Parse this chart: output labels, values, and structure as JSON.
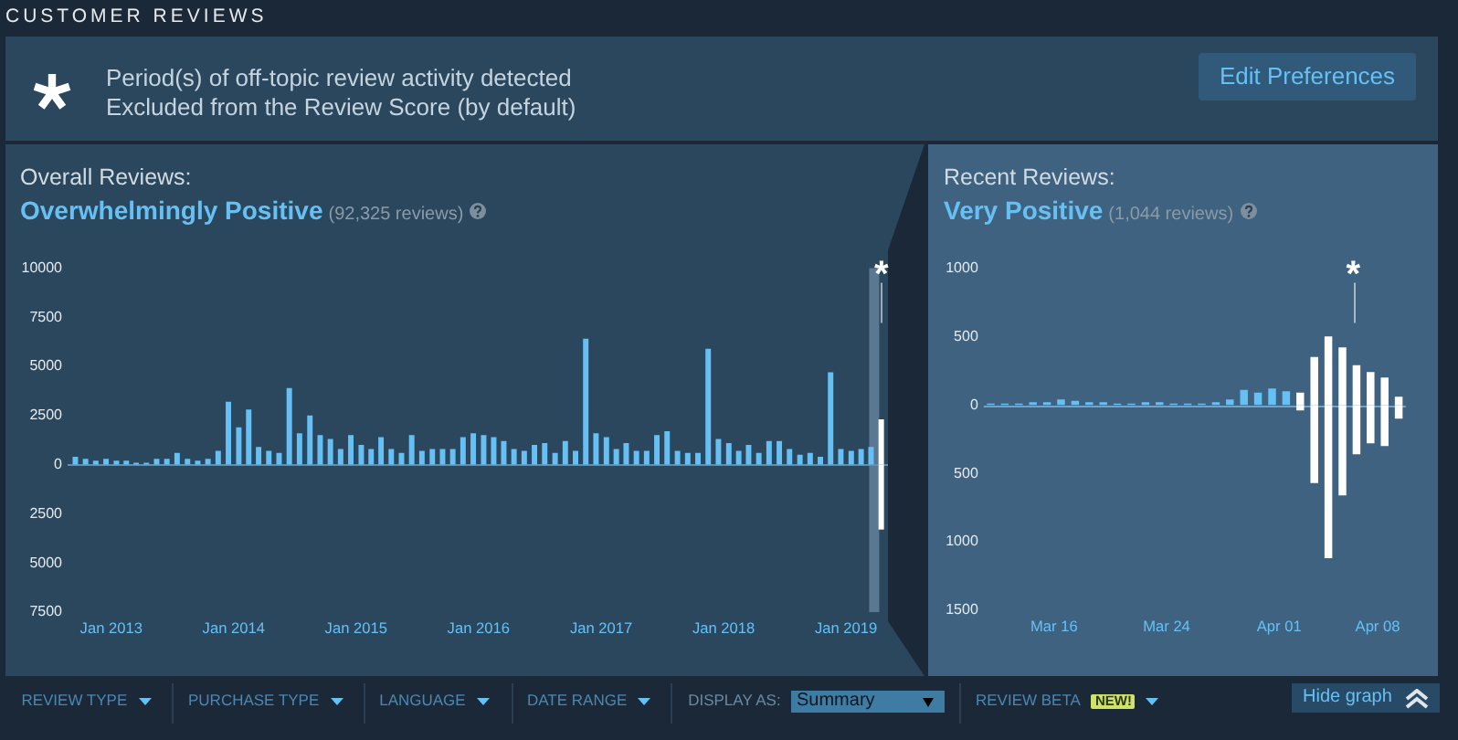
{
  "chart_data": [
    {
      "type": "other",
      "title": "CUSTOMER REVIEWS",
      "annotations": [
        "Period(s) of off-topic review activity detected",
        "Excluded from the Review Score (by default)",
        "Edit Preferences"
      ]
    },
    {
      "type": "bar",
      "title": "Overall Reviews:",
      "subtitle": "Overwhelmingly Positive",
      "annotations": [
        "(92,325 reviews)",
        {
          "text": "*",
          "x": "2019-04",
          "y": 10000
        }
      ],
      "x": [
        "2012-09",
        "2012-10",
        "2012-11",
        "2012-12",
        "2013-01",
        "2013-02",
        "2013-03",
        "2013-04",
        "2013-05",
        "2013-06",
        "2013-07",
        "2013-08",
        "2013-09",
        "2013-10",
        "2013-11",
        "2013-12",
        "2014-01",
        "2014-02",
        "2014-03",
        "2014-04",
        "2014-05",
        "2014-06",
        "2014-07",
        "2014-08",
        "2014-09",
        "2014-10",
        "2014-11",
        "2014-12",
        "2015-01",
        "2015-02",
        "2015-03",
        "2015-04",
        "2015-05",
        "2015-06",
        "2015-07",
        "2015-08",
        "2015-09",
        "2015-10",
        "2015-11",
        "2015-12",
        "2016-01",
        "2016-02",
        "2016-03",
        "2016-04",
        "2016-05",
        "2016-06",
        "2016-07",
        "2016-08",
        "2016-09",
        "2016-10",
        "2016-11",
        "2016-12",
        "2017-01",
        "2017-02",
        "2017-03",
        "2017-04",
        "2017-05",
        "2017-06",
        "2017-07",
        "2017-08",
        "2017-09",
        "2017-10",
        "2017-11",
        "2017-12",
        "2018-01",
        "2018-02",
        "2018-03",
        "2018-04",
        "2018-05",
        "2018-06",
        "2018-07",
        "2018-08",
        "2018-09",
        "2018-10",
        "2018-11",
        "2018-12",
        "2019-01",
        "2019-02",
        "2019-03",
        "2019-04"
      ],
      "series": [
        {
          "colors": [
            "#66c0f4",
            "#66c0f4",
            "#66c0f4",
            "#66c0f4",
            "#66c0f4",
            "#66c0f4",
            "#66c0f4",
            "#66c0f4",
            "#66c0f4",
            "#66c0f4",
            "#66c0f4",
            "#66c0f4",
            "#66c0f4",
            "#66c0f4",
            "#66c0f4",
            "#66c0f4",
            "#66c0f4",
            "#66c0f4",
            "#66c0f4",
            "#66c0f4",
            "#66c0f4",
            "#66c0f4",
            "#66c0f4",
            "#66c0f4",
            "#66c0f4",
            "#66c0f4",
            "#66c0f4",
            "#66c0f4",
            "#66c0f4",
            "#66c0f4",
            "#66c0f4",
            "#66c0f4",
            "#66c0f4",
            "#66c0f4",
            "#66c0f4",
            "#66c0f4",
            "#66c0f4",
            "#66c0f4",
            "#66c0f4",
            "#66c0f4",
            "#66c0f4",
            "#66c0f4",
            "#66c0f4",
            "#66c0f4",
            "#66c0f4",
            "#66c0f4",
            "#66c0f4",
            "#66c0f4",
            "#66c0f4",
            "#66c0f4",
            "#66c0f4",
            "#66c0f4",
            "#66c0f4",
            "#66c0f4",
            "#66c0f4",
            "#66c0f4",
            "#66c0f4",
            "#66c0f4",
            "#66c0f4",
            "#66c0f4",
            "#66c0f4",
            "#66c0f4",
            "#66c0f4",
            "#66c0f4",
            "#66c0f4",
            "#66c0f4",
            "#66c0f4",
            "#66c0f4",
            "#66c0f4",
            "#66c0f4",
            "#66c0f4",
            "#66c0f4",
            "#66c0f4",
            "#66c0f4",
            "#66c0f4",
            "#66c0f4",
            "#66c0f4",
            "#66c0f4",
            "#66c0f4",
            "#ffffff"
          ],
          "values": [
            400,
            300,
            200,
            300,
            200,
            200,
            100,
            100,
            300,
            300,
            600,
            300,
            200,
            300,
            700,
            3200,
            1900,
            2800,
            900,
            700,
            600,
            3900,
            1600,
            2500,
            1500,
            1300,
            800,
            1500,
            1000,
            800,
            1400,
            800,
            600,
            1500,
            700,
            800,
            800,
            800,
            1400,
            1600,
            1500,
            1400,
            1200,
            800,
            700,
            1000,
            1100,
            600,
            1200,
            700,
            6400,
            1600,
            1400,
            800,
            1100,
            700,
            700,
            1500,
            1700,
            700,
            600,
            600,
            5900,
            1300,
            1100,
            700,
            1000,
            600,
            1200,
            1200,
            800,
            500,
            600,
            400,
            4700,
            800,
            700,
            800,
            900,
            2300
          ]
        },
        {
          "color": "#ffffff",
          "values": [
            null,
            null,
            null,
            null,
            null,
            null,
            null,
            null,
            null,
            null,
            null,
            null,
            null,
            null,
            null,
            null,
            null,
            null,
            null,
            null,
            null,
            null,
            null,
            null,
            null,
            null,
            null,
            null,
            null,
            null,
            null,
            null,
            null,
            null,
            null,
            null,
            null,
            null,
            null,
            null,
            null,
            null,
            null,
            null,
            null,
            null,
            null,
            null,
            null,
            null,
            null,
            null,
            null,
            null,
            null,
            null,
            null,
            null,
            null,
            null,
            null,
            null,
            null,
            null,
            null,
            null,
            null,
            null,
            null,
            null,
            null,
            null,
            null,
            null,
            null,
            null,
            null,
            null,
            null,
            -3300
          ]
        }
      ],
      "xlim": [
        "2012-08-24",
        "2019-05-06"
      ],
      "xticks": [
        {
          "value": "2013-01",
          "label": "Jan 2013"
        },
        {
          "value": "2014-01",
          "label": "Jan 2014"
        },
        {
          "value": "2015-01",
          "label": "Jan 2015"
        },
        {
          "value": "2016-01",
          "label": "Jan 2016"
        },
        {
          "value": "2017-01",
          "label": "Jan 2017"
        },
        {
          "value": "2018-01",
          "label": "Jan 2018"
        },
        {
          "value": "2019-01",
          "label": "Jan 2019"
        }
      ],
      "ylim": [
        -7500,
        10000
      ],
      "yticks": [
        {
          "value": -7500,
          "label": "7500"
        },
        {
          "value": -5000,
          "label": "5000"
        },
        {
          "value": -2500,
          "label": "2500"
        },
        0,
        2500,
        5000,
        7500,
        10000
      ],
      "ref_lines": [
        {
          "axis": "y",
          "value": 0,
          "color": "#5d8fb3"
        }
      ],
      "bands": [
        {
          "axis": "x",
          "from": "2019-03-11",
          "to": "2019-04-09",
          "color": "#5b7892"
        }
      ]
    },
    {
      "type": "bar",
      "title": "Recent Reviews:",
      "subtitle": "Very Positive",
      "annotations": [
        "(1,044 reviews)",
        "*"
      ],
      "x": [
        "--03-11",
        "--03-12",
        "--03-13",
        "--03-14",
        "--03-15",
        "--03-16",
        "--03-17",
        "--03-18",
        "--03-19",
        "--03-20",
        "--03-21",
        "--03-22",
        "--03-23",
        "--03-24",
        "--03-25",
        "--03-26",
        "--03-27",
        "--03-28",
        "--03-29",
        "--03-30",
        "--03-31",
        "--04-01",
        "--04-02",
        "--04-03",
        "--04-04",
        "--04-05",
        "--04-06",
        "--04-07",
        "--04-08",
        "--04-09"
      ],
      "series": [
        {
          "colors": [
            "#66c0f4",
            "#66c0f4",
            "#66c0f4",
            "#66c0f4",
            "#66c0f4",
            "#66c0f4",
            "#66c0f4",
            "#66c0f4",
            "#66c0f4",
            "#66c0f4",
            "#66c0f4",
            "#66c0f4",
            "#66c0f4",
            "#66c0f4",
            "#66c0f4",
            "#66c0f4",
            "#66c0f4",
            "#66c0f4",
            "#66c0f4",
            "#66c0f4",
            "#66c0f4",
            "#66c0f4",
            "#ffffff",
            "#ffffff",
            "#ffffff",
            "#ffffff",
            "#ffffff",
            "#ffffff",
            "#ffffff",
            "#ffffff"
          ],
          "values": [
            10,
            10,
            10,
            20,
            20,
            40,
            30,
            20,
            20,
            10,
            10,
            20,
            20,
            10,
            10,
            10,
            20,
            40,
            110,
            90,
            120,
            100,
            90,
            350,
            500,
            420,
            290,
            240,
            200,
            60
          ]
        },
        {
          "color": "#ffffff",
          "values": [
            null,
            null,
            null,
            null,
            null,
            null,
            null,
            null,
            null,
            null,
            null,
            null,
            null,
            null,
            null,
            null,
            null,
            null,
            null,
            null,
            null,
            null,
            -40,
            -570,
            -1120,
            -660,
            -360,
            -280,
            -300,
            -100
          ]
        }
      ],
      "xlim": [
        "--03-11",
        "--04-10"
      ],
      "xticks": [
        {
          "value": "--03-16",
          "label": "Mar 16"
        },
        {
          "value": "--03-24",
          "label": "Mar 24"
        },
        {
          "value": "--04-01",
          "label": "Apr 01"
        },
        {
          "value": "--04-08",
          "label": "Apr 08"
        }
      ],
      "ylim": [
        -1500,
        1000
      ],
      "yticks": [
        {
          "value": -1500,
          "label": "1500"
        },
        {
          "value": -1000,
          "label": "1000"
        },
        {
          "value": -500,
          "label": "500"
        },
        0,
        500,
        1000
      ],
      "ref_lines": [
        {
          "axis": "y",
          "value": 0,
          "color": "#6fa3c9"
        }
      ]
    },
    {
      "type": "other",
      "annotations": [
        "REVIEW TYPE",
        "PURCHASE TYPE",
        "LANGUAGE",
        "DATE RANGE",
        "DISPLAY AS:",
        "Summary",
        "REVIEW BETA",
        "NEW!",
        "Hide graph"
      ]
    }
  ]
}
